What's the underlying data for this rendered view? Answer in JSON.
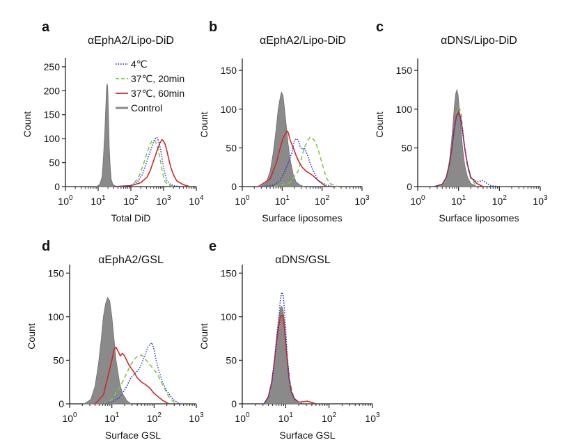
{
  "figure": {
    "series_styles": {
      "control": {
        "label": "Control",
        "color": "#8a8a8a",
        "style": "filled"
      },
      "c4": {
        "label": "4℃",
        "color": "#2a35c9",
        "style": "dotted"
      },
      "c37_20": {
        "label": "37℃, 20min",
        "color": "#7ac943",
        "style": "dashed"
      },
      "c37_60": {
        "label": "37℃, 60min",
        "color": "#d0262c",
        "style": "solid"
      }
    }
  },
  "chart_data": [
    {
      "id": "a",
      "panel_label": "a",
      "type": "area",
      "title": "αEphA2/Lipo-DiD",
      "xlabel": "Total DiD",
      "ylabel": "Count",
      "xscale": "log",
      "xlim": [
        0,
        4
      ],
      "ylim": [
        0,
        260
      ],
      "x_ticks": [
        0,
        1,
        2,
        3,
        4
      ],
      "y_ticks": [
        0,
        50,
        100,
        150,
        200,
        250
      ],
      "legend": {
        "position": "top-right",
        "entries": [
          "4℃",
          "37℃, 20min",
          "37℃, 60min",
          "Control"
        ]
      },
      "series": [
        {
          "name": "Control",
          "key": "control",
          "x": [
            0.95,
            1.05,
            1.12,
            1.16,
            1.2,
            1.23,
            1.25,
            1.27,
            1.29,
            1.3,
            1.32,
            1.34,
            1.37,
            1.4,
            1.45,
            1.5,
            1.55,
            1.6
          ],
          "y": [
            0,
            5,
            20,
            60,
            110,
            160,
            200,
            215,
            210,
            190,
            140,
            80,
            40,
            15,
            5,
            2,
            1,
            0
          ]
        },
        {
          "name": "4℃",
          "key": "c4",
          "x": [
            1.5,
            2,
            2.2,
            2.35,
            2.45,
            2.55,
            2.65,
            2.72,
            2.78,
            2.82,
            2.86,
            2.9,
            2.95,
            3,
            3.05,
            3.1,
            3.2,
            3.3,
            3.5
          ],
          "y": [
            0,
            2,
            10,
            25,
            45,
            65,
            85,
            98,
            103,
            100,
            92,
            80,
            60,
            40,
            25,
            12,
            5,
            2,
            0
          ]
        },
        {
          "name": "37℃, 20min",
          "key": "c37_20",
          "x": [
            1.5,
            2,
            2.2,
            2.3,
            2.4,
            2.5,
            2.6,
            2.65,
            2.7,
            2.75,
            2.8,
            2.85,
            2.9,
            2.95,
            3,
            3.05,
            3.15,
            3.3
          ],
          "y": [
            0,
            2,
            15,
            30,
            50,
            72,
            90,
            96,
            98,
            94,
            85,
            72,
            55,
            35,
            20,
            10,
            3,
            0
          ]
        },
        {
          "name": "37℃, 60min",
          "key": "c37_60",
          "x": [
            1.5,
            2,
            2.3,
            2.5,
            2.6,
            2.7,
            2.8,
            2.88,
            2.95,
            3,
            3.05,
            3.1,
            3.15,
            3.22,
            3.3,
            3.4,
            3.6,
            3.8
          ],
          "y": [
            0,
            2,
            8,
            20,
            35,
            55,
            75,
            90,
            98,
            95,
            88,
            75,
            60,
            40,
            25,
            12,
            4,
            0
          ]
        }
      ]
    },
    {
      "id": "b",
      "panel_label": "b",
      "type": "area",
      "title": "αEphA2/Lipo-DiD",
      "xlabel": "Surface liposomes",
      "ylabel": "Count",
      "xscale": "log",
      "xlim": [
        0,
        3
      ],
      "ylim": [
        0,
        160
      ],
      "x_ticks": [
        0,
        1,
        2,
        3
      ],
      "y_ticks": [
        0,
        50,
        100,
        150
      ],
      "series": [
        {
          "name": "Control",
          "key": "control",
          "x": [
            0.45,
            0.6,
            0.7,
            0.78,
            0.85,
            0.9,
            0.95,
            0.98,
            1.02,
            1.06,
            1.1,
            1.15,
            1.2,
            1.28,
            1.35,
            1.45,
            1.55
          ],
          "y": [
            0,
            5,
            20,
            45,
            75,
            100,
            115,
            122,
            118,
            100,
            80,
            55,
            35,
            15,
            6,
            2,
            0
          ]
        },
        {
          "name": "4℃",
          "key": "c4",
          "x": [
            0.5,
            0.8,
            0.95,
            1.05,
            1.15,
            1.25,
            1.3,
            1.35,
            1.4,
            1.45,
            1.5,
            1.55,
            1.6,
            1.65,
            1.7,
            1.8,
            1.9,
            2.1,
            2.3
          ],
          "y": [
            0,
            2,
            8,
            18,
            30,
            45,
            58,
            62,
            60,
            52,
            48,
            50,
            45,
            38,
            30,
            18,
            8,
            2,
            0
          ]
        },
        {
          "name": "37℃, 20min",
          "key": "c37_20",
          "x": [
            0.8,
            1.2,
            1.4,
            1.5,
            1.55,
            1.6,
            1.65,
            1.7,
            1.75,
            1.8,
            1.85,
            1.9,
            2,
            2.1,
            2.2,
            2.4
          ],
          "y": [
            0,
            5,
            20,
            40,
            50,
            55,
            60,
            64,
            63,
            60,
            55,
            48,
            30,
            12,
            4,
            0
          ]
        },
        {
          "name": "37℃, 60min",
          "key": "c37_60",
          "x": [
            0.4,
            0.7,
            0.85,
            0.95,
            1.02,
            1.08,
            1.12,
            1.15,
            1.2,
            1.28,
            1.35,
            1.42,
            1.5,
            1.6,
            1.75,
            1.9,
            2.1
          ],
          "y": [
            0,
            10,
            30,
            50,
            62,
            68,
            72,
            70,
            60,
            50,
            40,
            32,
            25,
            20,
            15,
            8,
            0
          ]
        }
      ]
    },
    {
      "id": "c",
      "panel_label": "c",
      "type": "area",
      "title": "αDNS/Lipo-DiD",
      "xlabel": "Surface liposomes",
      "ylabel": "Count",
      "xscale": "log",
      "xlim": [
        0,
        3
      ],
      "ylim": [
        0,
        160
      ],
      "x_ticks": [
        0,
        1,
        2,
        3
      ],
      "y_ticks": [
        0,
        50,
        100,
        150
      ],
      "series": [
        {
          "name": "Control",
          "key": "control",
          "x": [
            0.5,
            0.65,
            0.72,
            0.78,
            0.83,
            0.87,
            0.9,
            0.93,
            0.96,
            0.99,
            1.02,
            1.06,
            1.1,
            1.15,
            1.22,
            1.3,
            1.45
          ],
          "y": [
            0,
            5,
            15,
            35,
            60,
            85,
            105,
            120,
            125,
            118,
            100,
            75,
            50,
            28,
            12,
            4,
            0
          ]
        },
        {
          "name": "4℃",
          "key": "c4",
          "x": [
            0.4,
            0.6,
            0.7,
            0.78,
            0.85,
            0.9,
            0.95,
            1,
            1.05,
            1.1,
            1.15,
            1.22,
            1.3,
            1.45,
            1.6,
            1.7,
            1.8,
            2
          ],
          "y": [
            0,
            3,
            12,
            30,
            55,
            75,
            90,
            95,
            88,
            70,
            50,
            28,
            12,
            6,
            8,
            4,
            1,
            0
          ]
        },
        {
          "name": "37℃, 20min",
          "key": "c37_20",
          "x": [
            0.5,
            0.65,
            0.75,
            0.82,
            0.88,
            0.93,
            0.98,
            1.02,
            1.06,
            1.1,
            1.15,
            1.22,
            1.3,
            1.45
          ],
          "y": [
            0,
            5,
            20,
            45,
            70,
            90,
            100,
            102,
            95,
            75,
            50,
            25,
            10,
            0
          ]
        },
        {
          "name": "37℃, 60min",
          "key": "c37_60",
          "x": [
            0.4,
            0.6,
            0.7,
            0.78,
            0.85,
            0.9,
            0.95,
            1,
            1.05,
            1.1,
            1.15,
            1.22,
            1.3,
            1.45,
            1.6
          ],
          "y": [
            0,
            3,
            12,
            30,
            55,
            78,
            92,
            97,
            90,
            72,
            50,
            28,
            12,
            4,
            0
          ]
        }
      ]
    },
    {
      "id": "d",
      "panel_label": "d",
      "type": "area",
      "title": "αEphA2/GSL",
      "xlabel": "Surface GSL",
      "ylabel": "Count",
      "xscale": "log",
      "xlim": [
        0,
        3
      ],
      "ylim": [
        0,
        155
      ],
      "x_ticks": [
        0,
        1,
        2,
        3
      ],
      "y_ticks": [
        0,
        50,
        100,
        150
      ],
      "series": [
        {
          "name": "Control",
          "key": "control",
          "x": [
            0.35,
            0.5,
            0.6,
            0.68,
            0.75,
            0.8,
            0.85,
            0.9,
            0.95,
            1,
            1.05,
            1.1,
            1.18,
            1.25,
            1.35,
            1.45
          ],
          "y": [
            0,
            5,
            20,
            45,
            75,
            100,
            115,
            122,
            118,
            100,
            75,
            50,
            25,
            12,
            4,
            0
          ]
        },
        {
          "name": "4℃",
          "key": "c4",
          "x": [
            0.8,
            1,
            1.2,
            1.35,
            1.45,
            1.55,
            1.65,
            1.72,
            1.8,
            1.85,
            1.9,
            1.95,
            2,
            2.05,
            2.1,
            2.2,
            2.3,
            2.45,
            2.6
          ],
          "y": [
            0,
            2,
            8,
            20,
            30,
            35,
            40,
            48,
            58,
            65,
            68,
            70,
            62,
            50,
            40,
            25,
            15,
            5,
            0
          ]
        },
        {
          "name": "37℃, 20min",
          "key": "c37_20",
          "x": [
            0.8,
            1,
            1.2,
            1.35,
            1.45,
            1.55,
            1.62,
            1.7,
            1.78,
            1.85,
            1.9,
            1.95,
            2.02,
            2.1,
            2.2,
            2.35,
            2.5
          ],
          "y": [
            0,
            5,
            20,
            35,
            45,
            52,
            55,
            56,
            52,
            48,
            45,
            42,
            38,
            32,
            22,
            8,
            0
          ]
        },
        {
          "name": "37℃, 60min",
          "key": "c37_60",
          "x": [
            0.6,
            0.8,
            0.9,
            1,
            1.05,
            1.1,
            1.15,
            1.2,
            1.25,
            1.3,
            1.35,
            1.4,
            1.5,
            1.6,
            1.7,
            1.8,
            1.9,
            2,
            2.1,
            2.2,
            2.35
          ],
          "y": [
            0,
            10,
            30,
            50,
            62,
            65,
            60,
            55,
            58,
            55,
            50,
            45,
            38,
            30,
            25,
            22,
            18,
            12,
            8,
            4,
            0
          ]
        }
      ]
    },
    {
      "id": "e",
      "panel_label": "e",
      "type": "area",
      "title": "αDNS/GSL",
      "xlabel": "Surface GSL",
      "ylabel": "Count",
      "xscale": "log",
      "xlim": [
        0,
        3
      ],
      "ylim": [
        0,
        155
      ],
      "x_ticks": [
        0,
        1,
        2,
        3
      ],
      "y_ticks": [
        0,
        50,
        100,
        150
      ],
      "series": [
        {
          "name": "Control",
          "key": "control",
          "x": [
            0.5,
            0.6,
            0.68,
            0.74,
            0.8,
            0.85,
            0.88,
            0.91,
            0.94,
            0.97,
            1,
            1.04,
            1.08,
            1.13,
            1.2,
            1.3
          ],
          "y": [
            0,
            8,
            25,
            50,
            80,
            100,
            110,
            112,
            108,
            95,
            75,
            50,
            30,
            15,
            5,
            0
          ]
        },
        {
          "name": "4℃",
          "key": "c4",
          "x": [
            0.5,
            0.6,
            0.68,
            0.74,
            0.8,
            0.85,
            0.88,
            0.91,
            0.94,
            0.97,
            1,
            1.04,
            1.08,
            1.13,
            1.2,
            1.3,
            1.4
          ],
          "y": [
            0,
            8,
            25,
            50,
            80,
            105,
            120,
            128,
            125,
            110,
            85,
            55,
            30,
            15,
            6,
            2,
            0
          ]
        },
        {
          "name": "37℃, 20min",
          "key": "c37_20",
          "x": [
            0.5,
            0.62,
            0.7,
            0.76,
            0.82,
            0.86,
            0.9,
            0.93,
            0.96,
            1,
            1.04,
            1.1,
            1.18,
            1.3
          ],
          "y": [
            0,
            10,
            30,
            55,
            80,
            95,
            100,
            98,
            92,
            75,
            50,
            25,
            8,
            0
          ]
        },
        {
          "name": "37℃, 60min",
          "key": "c37_60",
          "x": [
            0.5,
            0.6,
            0.68,
            0.74,
            0.8,
            0.85,
            0.88,
            0.91,
            0.94,
            0.97,
            1,
            1.04,
            1.08,
            1.13,
            1.2,
            1.3,
            1.5,
            1.7
          ],
          "y": [
            0,
            8,
            25,
            48,
            75,
            92,
            100,
            102,
            98,
            88,
            70,
            48,
            28,
            14,
            6,
            2,
            3,
            0
          ]
        }
      ]
    }
  ]
}
